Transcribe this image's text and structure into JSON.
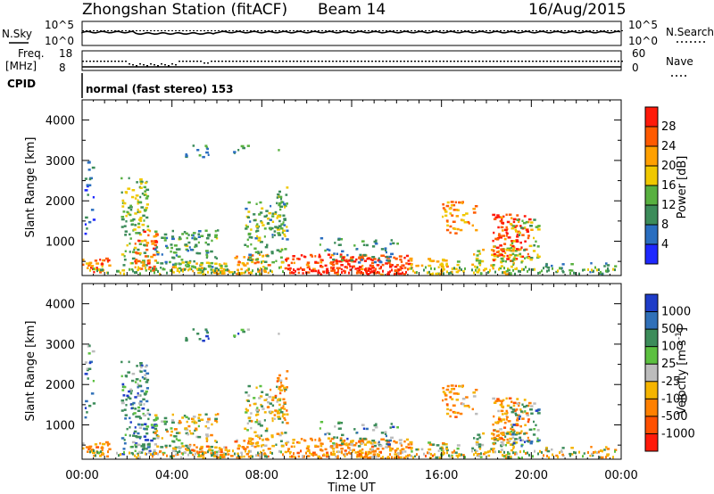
{
  "header": {
    "station": "Zhongshan Station (fitACF)",
    "beam": "Beam 14",
    "date": "16/Aug/2015"
  },
  "nsky_panel": {
    "left_label": "N.Sky",
    "right_label": "N.Search",
    "left_ticks": [
      "10^5",
      "10^0"
    ],
    "right_ticks": [
      "10^5",
      "10^0"
    ]
  },
  "freq_panel": {
    "left_label_top": "Freq.",
    "left_label_bottom": "[MHz]",
    "left_ticks": [
      "18",
      "8"
    ],
    "right_label": "Nave",
    "right_ticks": [
      "60",
      "0"
    ]
  },
  "cpid": {
    "label": "CPID",
    "mode": "normal (fast stereo) 153"
  },
  "chart_data": [
    {
      "type": "heatmap",
      "name": "power",
      "ylabel": "Slant Range [km]",
      "yticks": [
        "4000",
        "3000",
        "2000",
        "1000"
      ],
      "xlabel": "",
      "colorbar": {
        "label": "Power [dB]",
        "ticks": [
          "28",
          "24",
          "20",
          "16",
          "12",
          "8",
          "4"
        ],
        "colors": [
          "#ff1a0a",
          "#ff5a00",
          "#ffa000",
          "#f0c800",
          "#58b040",
          "#3c8c5a",
          "#2a6ec0",
          "#1e28ff"
        ]
      }
    },
    {
      "type": "heatmap",
      "name": "velocity",
      "ylabel": "Slant Range [km]",
      "yticks": [
        "4000",
        "3000",
        "2000",
        "1000"
      ],
      "xlabel": "Time UT",
      "xticks": [
        "00:00",
        "04:00",
        "08:00",
        "12:00",
        "16:00",
        "20:00",
        "00:00"
      ],
      "colorbar": {
        "label": "Velocity [m s^-1]",
        "ticks": [
          "1000",
          "500",
          "100",
          "25",
          "-25",
          "-100",
          "-500",
          "-1000"
        ],
        "colors": [
          "#1e3cc8",
          "#3070b8",
          "#3c8c5a",
          "#5cc040",
          "#bcbcbc",
          "#f5b400",
          "#ff8000",
          "#ff5000",
          "#ff1a0a"
        ]
      }
    }
  ]
}
